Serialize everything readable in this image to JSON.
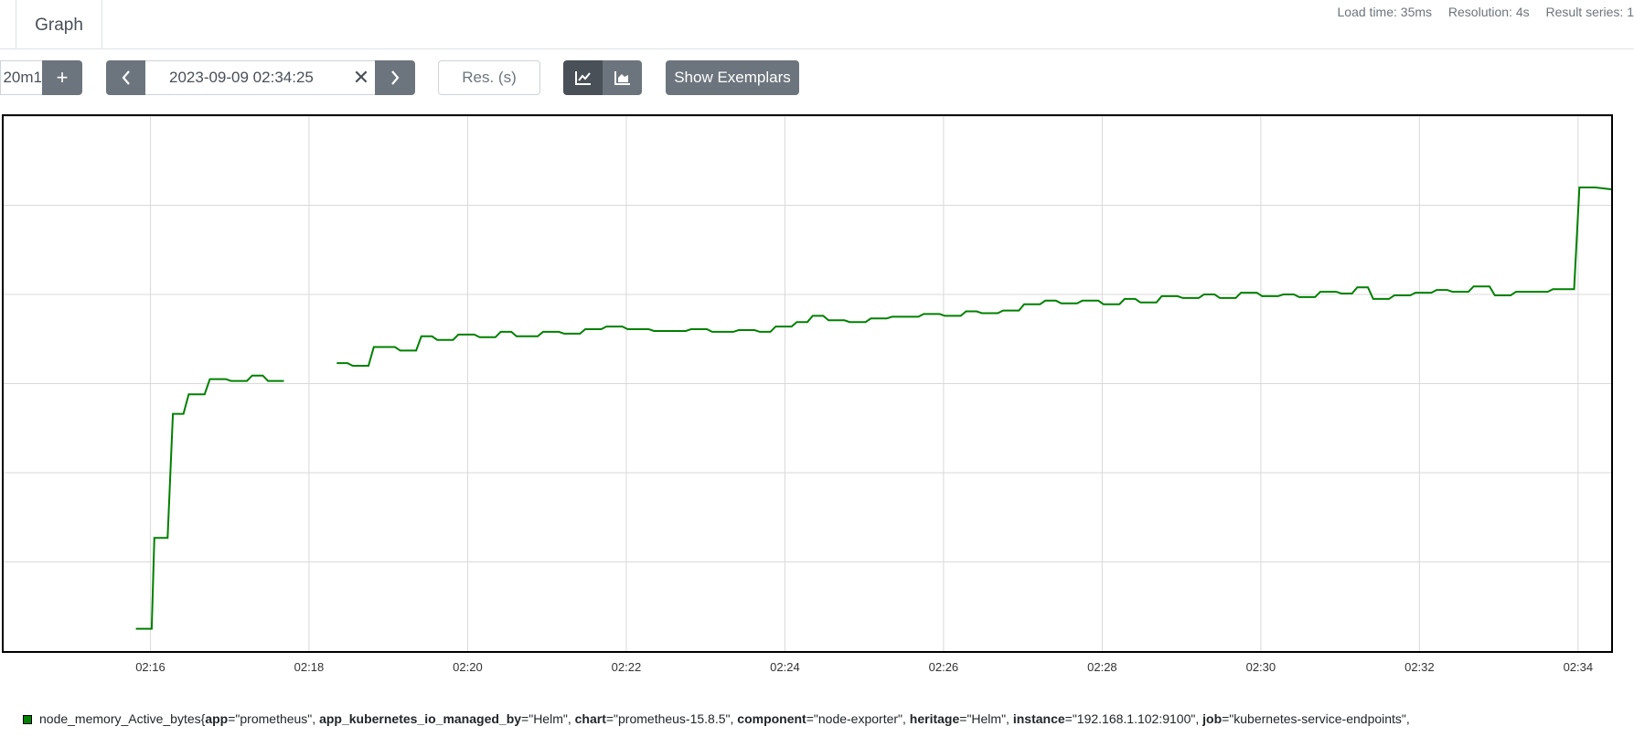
{
  "tabs": {
    "graph_label": "Graph"
  },
  "stats": {
    "load_time": "Load time: 35ms",
    "resolution": "Resolution: 4s",
    "result_series": "Result series: 1"
  },
  "controls": {
    "range_value": "20m1",
    "plus": "+",
    "end_time": "2023-09-09 02:34:25",
    "clear": "✕",
    "res_placeholder": "Res. (s)",
    "show_exemplars": "Show Exemplars"
  },
  "colors": {
    "series": "#008000",
    "button": "#6c757d",
    "button_active": "#495057"
  },
  "chart_data": {
    "type": "line",
    "x_ticks": [
      "02:16",
      "02:18",
      "02:20",
      "02:22",
      "02:24",
      "02:26",
      "02:28",
      "02:30",
      "02:32",
      "02:34"
    ],
    "x_range": [
      "02:14:09",
      "02:34:25"
    ],
    "y_range": [
      0,
      6
    ],
    "y_tick_labels": [],
    "grid": true,
    "series": [
      {
        "name": "node_memory_Active_bytes",
        "color": "#008000",
        "points": [
          [
            "02:15:49",
            0.25
          ],
          [
            "02:16:01",
            0.25
          ],
          [
            "02:16:03",
            1.27
          ],
          [
            "02:16:13",
            1.27
          ],
          [
            "02:16:17",
            2.66
          ],
          [
            "02:16:25",
            2.66
          ],
          [
            "02:16:29",
            2.88
          ],
          [
            "02:16:41",
            2.88
          ],
          [
            "02:16:45",
            3.05
          ],
          [
            "02:16:57",
            3.05
          ],
          [
            "02:17:01",
            3.03
          ],
          [
            "02:17:13",
            3.03
          ],
          [
            "02:17:17",
            3.09
          ],
          [
            "02:17:25",
            3.09
          ],
          [
            "02:17:29",
            3.03
          ],
          [
            "02:17:41",
            3.03
          ],
          null,
          [
            "02:18:21",
            3.23
          ],
          [
            "02:18:29",
            3.23
          ],
          [
            "02:18:33",
            3.2
          ],
          [
            "02:18:45",
            3.2
          ],
          [
            "02:18:49",
            3.41
          ],
          [
            "02:19:05",
            3.41
          ],
          [
            "02:19:09",
            3.37
          ],
          [
            "02:19:21",
            3.37
          ],
          [
            "02:19:25",
            3.53
          ],
          [
            "02:19:33",
            3.53
          ],
          [
            "02:19:37",
            3.49
          ],
          [
            "02:19:49",
            3.49
          ],
          [
            "02:19:53",
            3.55
          ],
          [
            "02:20:05",
            3.55
          ],
          [
            "02:20:09",
            3.52
          ],
          [
            "02:20:21",
            3.52
          ],
          [
            "02:20:25",
            3.58
          ],
          [
            "02:20:33",
            3.58
          ],
          [
            "02:20:37",
            3.53
          ],
          [
            "02:20:53",
            3.53
          ],
          [
            "02:20:57",
            3.58
          ],
          [
            "02:21:09",
            3.58
          ],
          [
            "02:21:13",
            3.56
          ],
          [
            "02:21:25",
            3.56
          ],
          [
            "02:21:29",
            3.61
          ],
          [
            "02:21:41",
            3.61
          ],
          [
            "02:21:45",
            3.64
          ],
          [
            "02:21:57",
            3.64
          ],
          [
            "02:22:01",
            3.61
          ],
          [
            "02:22:17",
            3.61
          ],
          [
            "02:22:21",
            3.59
          ],
          [
            "02:22:45",
            3.59
          ],
          [
            "02:22:49",
            3.61
          ],
          [
            "02:23:01",
            3.61
          ],
          [
            "02:23:05",
            3.58
          ],
          [
            "02:23:21",
            3.58
          ],
          [
            "02:23:25",
            3.6
          ],
          [
            "02:23:37",
            3.6
          ],
          [
            "02:23:41",
            3.58
          ],
          [
            "02:23:49",
            3.58
          ],
          [
            "02:23:53",
            3.64
          ],
          [
            "02:24:05",
            3.64
          ],
          [
            "02:24:09",
            3.69
          ],
          [
            "02:24:17",
            3.69
          ],
          [
            "02:24:21",
            3.76
          ],
          [
            "02:24:29",
            3.76
          ],
          [
            "02:24:33",
            3.71
          ],
          [
            "02:24:45",
            3.71
          ],
          [
            "02:24:49",
            3.69
          ],
          [
            "02:25:01",
            3.69
          ],
          [
            "02:25:05",
            3.73
          ],
          [
            "02:25:17",
            3.73
          ],
          [
            "02:25:21",
            3.75
          ],
          [
            "02:25:41",
            3.75
          ],
          [
            "02:25:45",
            3.78
          ],
          [
            "02:25:57",
            3.78
          ],
          [
            "02:26:01",
            3.76
          ],
          [
            "02:26:13",
            3.76
          ],
          [
            "02:26:17",
            3.81
          ],
          [
            "02:26:25",
            3.81
          ],
          [
            "02:26:29",
            3.79
          ],
          [
            "02:26:41",
            3.79
          ],
          [
            "02:26:45",
            3.82
          ],
          [
            "02:26:57",
            3.82
          ],
          [
            "02:27:01",
            3.89
          ],
          [
            "02:27:13",
            3.89
          ],
          [
            "02:27:17",
            3.93
          ],
          [
            "02:27:25",
            3.93
          ],
          [
            "02:27:29",
            3.9
          ],
          [
            "02:27:41",
            3.9
          ],
          [
            "02:27:45",
            3.93
          ],
          [
            "02:27:57",
            3.93
          ],
          [
            "02:28:01",
            3.89
          ],
          [
            "02:28:13",
            3.89
          ],
          [
            "02:28:17",
            3.95
          ],
          [
            "02:28:25",
            3.95
          ],
          [
            "02:28:29",
            3.91
          ],
          [
            "02:28:41",
            3.91
          ],
          [
            "02:28:45",
            3.98
          ],
          [
            "02:28:57",
            3.98
          ],
          [
            "02:29:01",
            3.96
          ],
          [
            "02:29:13",
            3.96
          ],
          [
            "02:29:17",
            4.0
          ],
          [
            "02:29:25",
            4.0
          ],
          [
            "02:29:29",
            3.96
          ],
          [
            "02:29:41",
            3.96
          ],
          [
            "02:29:45",
            4.02
          ],
          [
            "02:29:57",
            4.02
          ],
          [
            "02:30:01",
            3.98
          ],
          [
            "02:30:13",
            3.98
          ],
          [
            "02:30:17",
            4.0
          ],
          [
            "02:30:25",
            4.0
          ],
          [
            "02:30:29",
            3.97
          ],
          [
            "02:30:41",
            3.97
          ],
          [
            "02:30:45",
            4.03
          ],
          [
            "02:30:57",
            4.03
          ],
          [
            "02:31:01",
            4.01
          ],
          [
            "02:31:09",
            4.01
          ],
          [
            "02:31:13",
            4.08
          ],
          [
            "02:31:21",
            4.08
          ],
          [
            "02:31:25",
            3.95
          ],
          [
            "02:31:37",
            3.95
          ],
          [
            "02:31:41",
            3.99
          ],
          [
            "02:31:53",
            3.99
          ],
          [
            "02:31:57",
            4.02
          ],
          [
            "02:32:09",
            4.02
          ],
          [
            "02:32:13",
            4.05
          ],
          [
            "02:32:21",
            4.05
          ],
          [
            "02:32:25",
            4.03
          ],
          [
            "02:32:37",
            4.03
          ],
          [
            "02:32:41",
            4.09
          ],
          [
            "02:32:53",
            4.09
          ],
          [
            "02:32:57",
            3.99
          ],
          [
            "02:33:09",
            3.99
          ],
          [
            "02:33:13",
            4.03
          ],
          [
            "02:33:37",
            4.03
          ],
          [
            "02:33:41",
            4.06
          ],
          [
            "02:33:57",
            4.06
          ],
          [
            "02:34:01",
            5.2
          ],
          [
            "02:34:13",
            5.2
          ],
          [
            "02:34:25",
            5.18
          ]
        ]
      }
    ]
  },
  "legend": {
    "metric": "node_memory_Active_bytes",
    "open_brace": "{",
    "labels": [
      {
        "key": "app",
        "value": "\"prometheus\""
      },
      {
        "key": "app_kubernetes_io_managed_by",
        "value": "\"Helm\""
      },
      {
        "key": "chart",
        "value": "\"prometheus-15.8.5\""
      },
      {
        "key": "component",
        "value": "\"node-exporter\""
      },
      {
        "key": "heritage",
        "value": "\"Helm\""
      },
      {
        "key": "instance",
        "value": "\"192.168.1.102:9100\""
      },
      {
        "key": "job",
        "value": "\"kubernetes-service-endpoints\""
      }
    ]
  }
}
